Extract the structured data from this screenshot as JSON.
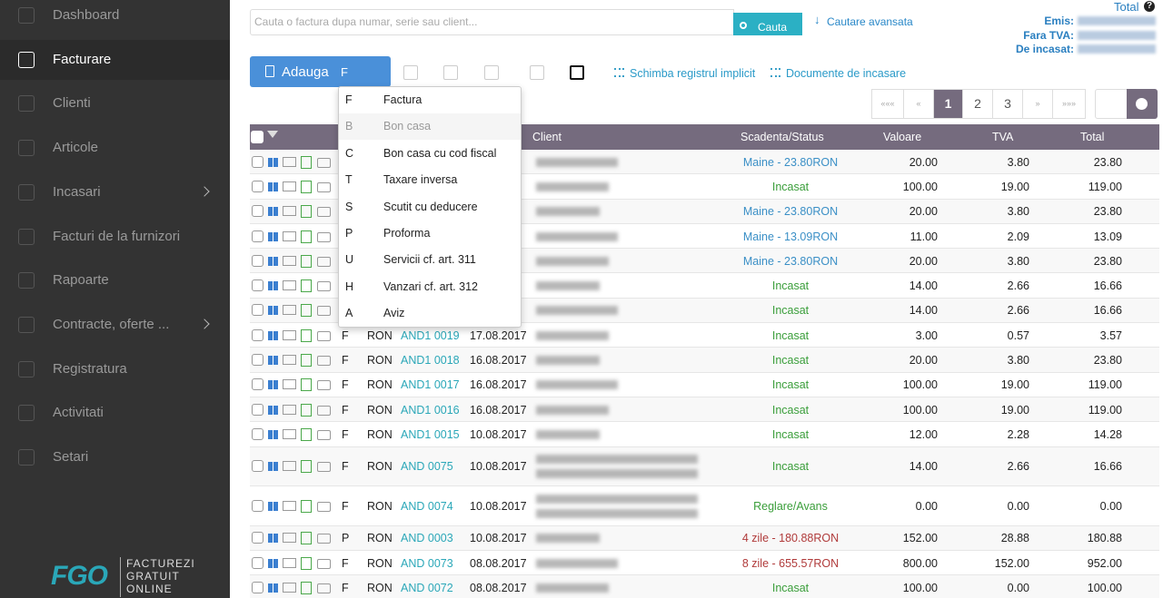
{
  "sidebar": {
    "menu": [
      {
        "label": "Dashboard"
      },
      {
        "label": "Facturare",
        "active": true
      },
      {
        "label": "Clienti"
      },
      {
        "label": "Articole"
      },
      {
        "label": "Incasari",
        "submenu": true
      },
      {
        "label": "Facturi de la furnizori"
      },
      {
        "label": "Rapoarte"
      },
      {
        "label": "Contracte, oferte ...",
        "submenu": true
      },
      {
        "label": "Registratura"
      },
      {
        "label": "Activitati"
      },
      {
        "label": "Setari"
      }
    ],
    "logo": {
      "mark": "FGO",
      "lines": [
        "FACTUREZI",
        "GRATUIT",
        "ONLINE"
      ]
    }
  },
  "search": {
    "placeholder": "Cauta o factura dupa numar, serie sau client...",
    "button": "Cauta",
    "advanced": "Cautare avansata"
  },
  "totals": {
    "title": "Total",
    "labels": [
      "Emis:",
      "Fara TVA:",
      "De incasat:"
    ]
  },
  "toolbar": {
    "add_button": "Adauga",
    "add_series": "F",
    "links": [
      "Schimba registrul implicit",
      "Documente de incasare"
    ]
  },
  "pagination": {
    "items": [
      {
        "label": "«««"
      },
      {
        "label": "«"
      },
      {
        "label": "1",
        "active": true
      },
      {
        "label": "2"
      },
      {
        "label": "3"
      },
      {
        "label": "»"
      },
      {
        "label": "»»»"
      }
    ]
  },
  "table": {
    "columns": [
      "Client",
      "Scadenta/Status",
      "Valoare",
      "TVA",
      "Total"
    ],
    "rows": [
      {
        "status": "Maine - 23.80RON",
        "status_color": "#3a8fc6",
        "value": "20.00",
        "vat": "3.80",
        "total": "23.80"
      },
      {
        "status": "Incasat",
        "status_color": "#3a9e3a",
        "value": "100.00",
        "vat": "19.00",
        "total": "119.00"
      },
      {
        "status": "Maine - 23.80RON",
        "status_color": "#3a8fc6",
        "value": "20.00",
        "vat": "3.80",
        "total": "23.80"
      },
      {
        "status": "Maine - 13.09RON",
        "status_color": "#3a8fc6",
        "value": "11.00",
        "vat": "2.09",
        "total": "13.09"
      },
      {
        "status": "Maine - 23.80RON",
        "status_color": "#3a8fc6",
        "value": "20.00",
        "vat": "3.80",
        "total": "23.80"
      },
      {
        "status": "Incasat",
        "status_color": "#3a9e3a",
        "value": "14.00",
        "vat": "2.66",
        "total": "16.66"
      },
      {
        "status": "Incasat",
        "status_color": "#3a9e3a",
        "value": "14.00",
        "vat": "2.66",
        "total": "16.66"
      },
      {
        "type": "F",
        "currency": "RON",
        "number": "AND1 0019",
        "date": "17.08.2017",
        "status": "Incasat",
        "status_color": "#3a9e3a",
        "value": "3.00",
        "vat": "0.57",
        "total": "3.57"
      },
      {
        "type": "F",
        "currency": "RON",
        "number": "AND1 0018",
        "date": "16.08.2017",
        "status": "Incasat",
        "status_color": "#3a9e3a",
        "value": "20.00",
        "vat": "3.80",
        "total": "23.80"
      },
      {
        "type": "F",
        "currency": "RON",
        "number": "AND1 0017",
        "date": "16.08.2017",
        "status": "Incasat",
        "status_color": "#3a9e3a",
        "value": "100.00",
        "vat": "19.00",
        "total": "119.00"
      },
      {
        "type": "F",
        "currency": "RON",
        "number": "AND1 0016",
        "date": "16.08.2017",
        "status": "Incasat",
        "status_color": "#3a9e3a",
        "value": "100.00",
        "vat": "19.00",
        "total": "119.00"
      },
      {
        "type": "F",
        "currency": "RON",
        "number": "AND1 0015",
        "date": "10.08.2017",
        "status": "Incasat",
        "status_color": "#3a9e3a",
        "value": "12.00",
        "vat": "2.28",
        "total": "14.28"
      },
      {
        "type": "F",
        "currency": "RON",
        "number": "AND 0075",
        "date": "10.08.2017",
        "status": "Incasat",
        "status_color": "#3a9e3a",
        "value": "14.00",
        "vat": "2.66",
        "total": "16.66"
      },
      {
        "type": "F",
        "currency": "RON",
        "number": "AND 0074",
        "date": "10.08.2017",
        "status": "Reglare/Avans",
        "status_color": "#3a9e3a",
        "value": "0.00",
        "vat": "0.00",
        "total": "0.00"
      },
      {
        "type": "P",
        "currency": "RON",
        "number": "AND 0003",
        "date": "10.08.2017",
        "status": "4 zile - 180.88RON",
        "status_color": "#b03a3a",
        "value": "152.00",
        "vat": "28.88",
        "total": "180.88"
      },
      {
        "type": "F",
        "currency": "RON",
        "number": "AND 0073",
        "date": "08.08.2017",
        "status": "8 zile - 655.57RON",
        "status_color": "#b03a3a",
        "value": "800.00",
        "vat": "152.00",
        "total": "952.00"
      },
      {
        "type": "F",
        "currency": "RON",
        "number": "AND 0072",
        "date": "08.08.2017",
        "status": "Incasat",
        "status_color": "#3a9e3a",
        "value": "100.00",
        "vat": "0.00",
        "total": "100.00"
      }
    ]
  },
  "dropdown": {
    "items": [
      {
        "key": "F",
        "label": "Factura"
      },
      {
        "key": "B",
        "label": "Bon casa",
        "disabled": true
      },
      {
        "key": "C",
        "label": "Bon casa cu cod fiscal"
      },
      {
        "key": "T",
        "label": "Taxare inversa"
      },
      {
        "key": "S",
        "label": "Scutit cu deducere"
      },
      {
        "key": "P",
        "label": "Proforma"
      },
      {
        "key": "U",
        "label": "Servicii cf. art. 311"
      },
      {
        "key": "H",
        "label": "Vanzari cf. art. 312"
      },
      {
        "key": "A",
        "label": "Aviz"
      }
    ]
  }
}
